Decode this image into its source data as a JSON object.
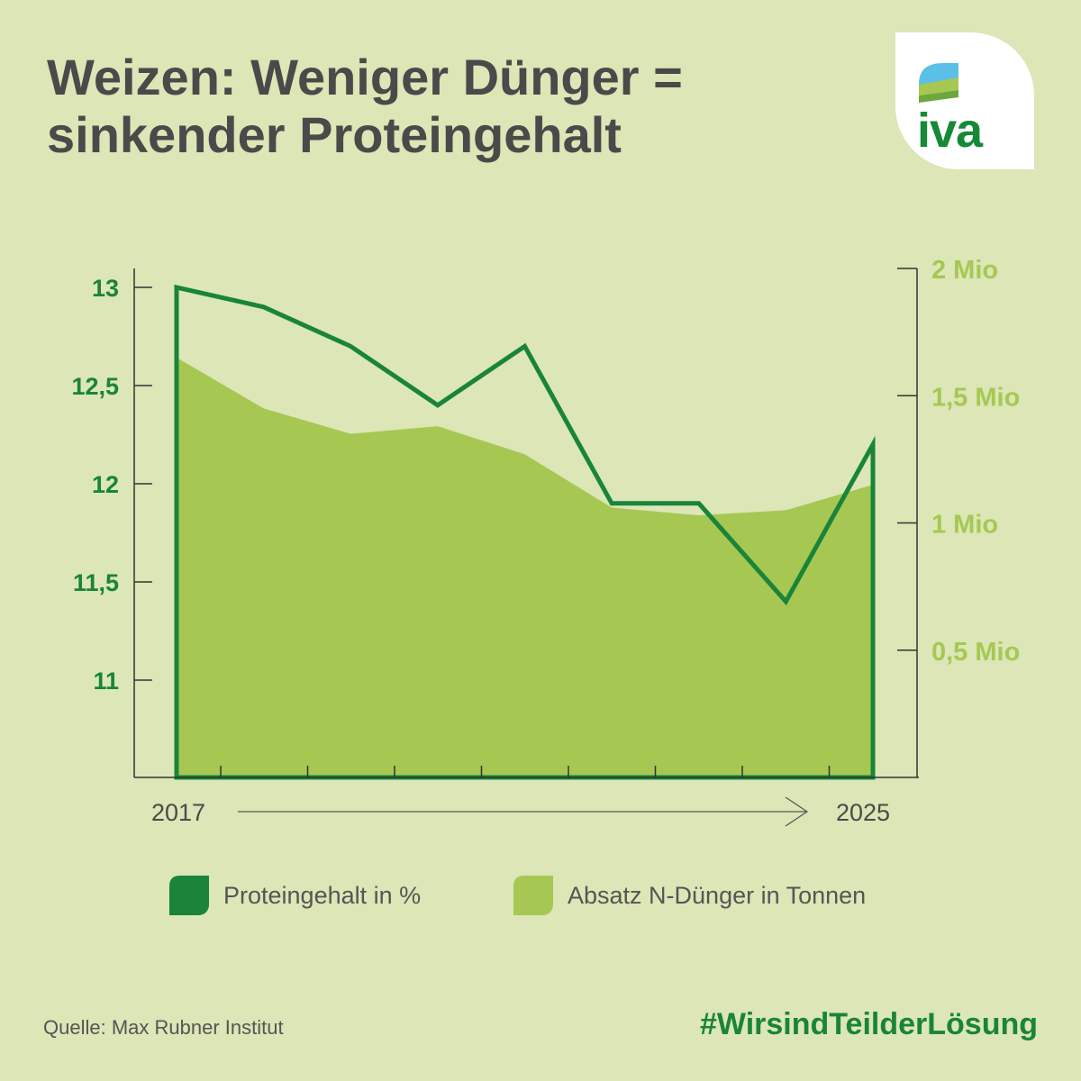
{
  "title": {
    "line1": "Weizen: Weniger Dünger =",
    "line2": "sinkender Proteingehalt"
  },
  "logo": {
    "text": "iva"
  },
  "chart_data": {
    "type": "line",
    "x": [
      2017,
      2018,
      2019,
      2020,
      2021,
      2022,
      2023,
      2024,
      2025
    ],
    "x_tick_labels": [
      "2017",
      "2025"
    ],
    "left_axis": {
      "ticks": [
        "13",
        "12,5",
        "12",
        "11,5",
        "11"
      ],
      "tick_values": [
        13,
        12.5,
        12,
        11.5,
        11
      ],
      "range": [
        10.5,
        13
      ]
    },
    "right_axis": {
      "ticks": [
        "2 Mio",
        "1,5 Mio",
        "1 Mio",
        "0,5 Mio"
      ],
      "tick_values": [
        2000000,
        1500000,
        1000000,
        500000
      ],
      "range": [
        0,
        2000000
      ]
    },
    "series": [
      {
        "name": "Proteingehalt in %",
        "kind": "line",
        "axis": "left",
        "color": "#19843a",
        "values": [
          13.0,
          12.9,
          12.7,
          12.4,
          12.7,
          11.9,
          11.9,
          11.4,
          12.2
        ]
      },
      {
        "name": "Absatz N-Dünger in Tonnen",
        "kind": "area",
        "axis": "right",
        "color": "#a6c853",
        "values": [
          1650000,
          1450000,
          1350000,
          1380000,
          1270000,
          1060000,
          1030000,
          1050000,
          1150000
        ]
      }
    ],
    "grid": false,
    "legend_position": "bottom"
  },
  "legend": {
    "protein_label": "Proteingehalt in %",
    "fertilizer_label": "Absatz N-Dünger in Tonnen",
    "protein_color": "#19843a",
    "fertilizer_color": "#a6c853"
  },
  "footer": {
    "source": "Quelle: Max Rubner Institut",
    "hashtag": "#WirsindTeilderLösung"
  }
}
